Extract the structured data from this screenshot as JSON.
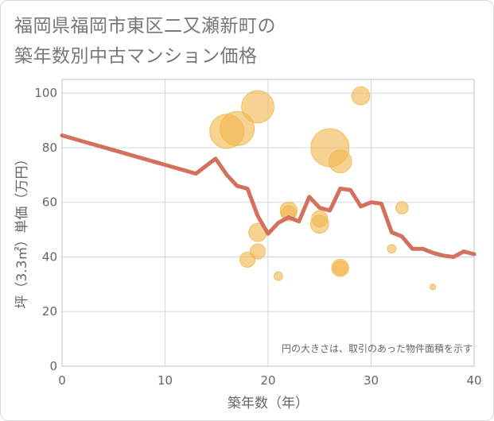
{
  "chart_data": {
    "type": "scatter",
    "title_line1": "福岡県福岡市東区二又瀬新町の",
    "title_line2": "築年数別中古マンション価格",
    "xlabel": "築年数（年）",
    "ylabel": "坪（3.3㎡）単価（万円）",
    "xlim": [
      0,
      40
    ],
    "ylim": [
      0,
      105
    ],
    "xticks": [
      0,
      10,
      20,
      30,
      40
    ],
    "yticks": [
      0,
      20,
      40,
      60,
      80,
      100
    ],
    "annotation": "円の大きさは、取引のあった物件面積を示す",
    "colors": {
      "bubble": "#f1b84f",
      "line": "#d4705e",
      "grid": "#cfd9e3",
      "plot_border": "#b8c4cf"
    },
    "series": [
      {
        "name": "trend",
        "kind": "line",
        "points": [
          [
            0,
            84.5
          ],
          [
            13,
            70.5
          ],
          [
            14.9,
            76
          ],
          [
            16,
            70
          ],
          [
            17,
            66
          ],
          [
            18,
            65
          ],
          [
            19,
            55
          ],
          [
            20,
            48.5
          ],
          [
            21,
            52.5
          ],
          [
            22,
            54.5
          ],
          [
            23,
            53
          ],
          [
            24,
            62
          ],
          [
            25,
            58
          ],
          [
            26,
            57
          ],
          [
            27,
            65
          ],
          [
            28,
            64.5
          ],
          [
            29,
            58.5
          ],
          [
            30,
            60
          ],
          [
            31,
            59.5
          ],
          [
            32,
            49
          ],
          [
            33,
            47.5
          ],
          [
            34,
            43
          ],
          [
            35,
            43
          ],
          [
            36,
            41.5
          ],
          [
            37,
            40.5
          ],
          [
            38,
            40
          ],
          [
            39,
            42
          ],
          [
            40,
            41
          ]
        ]
      },
      {
        "name": "transactions",
        "kind": "bubble",
        "points": [
          {
            "x": 16,
            "y": 86,
            "size": 3.6
          },
          {
            "x": 17,
            "y": 87,
            "size": 3.6
          },
          {
            "x": 19,
            "y": 95,
            "size": 3.4
          },
          {
            "x": 18,
            "y": 39,
            "size": 1.6
          },
          {
            "x": 19,
            "y": 49,
            "size": 1.9
          },
          {
            "x": 19,
            "y": 42,
            "size": 1.6
          },
          {
            "x": 21,
            "y": 33,
            "size": 0.9
          },
          {
            "x": 22,
            "y": 57,
            "size": 1.8
          },
          {
            "x": 22,
            "y": 56,
            "size": 1.6
          },
          {
            "x": 25,
            "y": 54,
            "size": 1.7
          },
          {
            "x": 25,
            "y": 52,
            "size": 1.9
          },
          {
            "x": 26,
            "y": 80,
            "size": 4.0
          },
          {
            "x": 27,
            "y": 75,
            "size": 2.4
          },
          {
            "x": 27,
            "y": 36,
            "size": 1.8
          },
          {
            "x": 27,
            "y": 36,
            "size": 1.5
          },
          {
            "x": 29,
            "y": 99,
            "size": 1.9
          },
          {
            "x": 32,
            "y": 43,
            "size": 0.9
          },
          {
            "x": 33,
            "y": 58,
            "size": 1.3
          },
          {
            "x": 36,
            "y": 29,
            "size": 0.6
          }
        ]
      }
    ]
  }
}
